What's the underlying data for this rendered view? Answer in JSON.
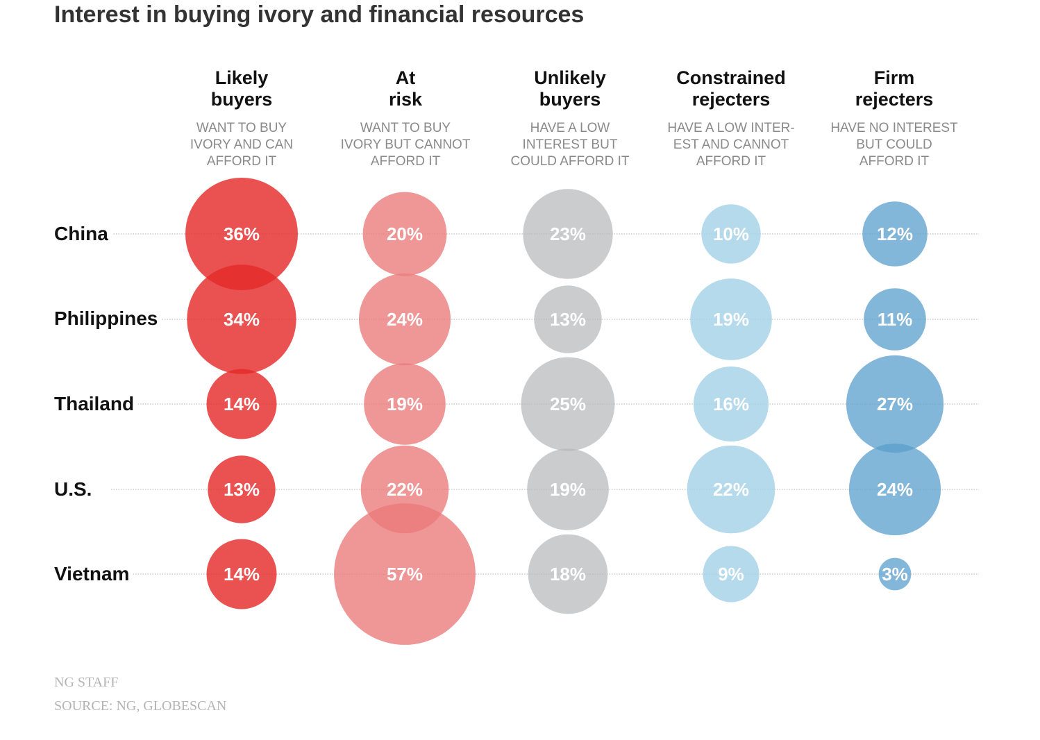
{
  "title": "Interest in buying ivory and financial resources",
  "colors": {
    "likely_buyers": "#e52b2b",
    "at_risk": "#ea7a7a",
    "unlikely_buyers": "#b5b8ba",
    "constrained_rejecters": "#a5d2e6",
    "firm_rejecters": "#5a9fcc",
    "label_text": "#ffffff",
    "gridline": "#b0b0b0"
  },
  "chart_data": {
    "type": "bubble-matrix",
    "title": "Interest in buying ivory and financial resources",
    "unit": "%",
    "categories": [
      "Likely buyers",
      "At risk",
      "Unlikely buyers",
      "Constrained rejecters",
      "Firm rejecters"
    ],
    "columns": [
      {
        "name_line1": "Likely",
        "name_line2": "buyers",
        "desc_line1": "WANT TO BUY",
        "desc_line2": "IVORY AND CAN",
        "desc_line3": "AFFORD IT"
      },
      {
        "name_line1": "At",
        "name_line2": "risk",
        "desc_line1": "WANT TO BUY",
        "desc_line2": "IVORY BUT CANNOT",
        "desc_line3": "AFFORD IT"
      },
      {
        "name_line1": "Unlikely",
        "name_line2": "buyers",
        "desc_line1": "HAVE A LOW",
        "desc_line2": "INTEREST BUT",
        "desc_line3": "COULD AFFORD IT"
      },
      {
        "name_line1": "Constrained",
        "name_line2": "rejecters",
        "desc_line1": "HAVE A LOW INTER-",
        "desc_line2": "EST AND CANNOT",
        "desc_line3": "AFFORD IT"
      },
      {
        "name_line1": "Firm",
        "name_line2": "rejecters",
        "desc_line1": "HAVE NO INTEREST",
        "desc_line2": "BUT COULD",
        "desc_line3": "AFFORD IT"
      }
    ],
    "rows": [
      "China",
      "Philippines",
      "Thailand",
      "U.S.",
      "Vietnam"
    ],
    "series": [
      {
        "name": "China",
        "values": [
          36,
          20,
          23,
          10,
          12
        ]
      },
      {
        "name": "Philippines",
        "values": [
          34,
          24,
          13,
          19,
          11
        ]
      },
      {
        "name": "Thailand",
        "values": [
          14,
          19,
          25,
          16,
          27
        ]
      },
      {
        "name": "U.S.",
        "values": [
          13,
          22,
          19,
          22,
          24
        ]
      },
      {
        "name": "Vietnam",
        "values": [
          14,
          57,
          18,
          9,
          3
        ]
      }
    ],
    "gridlines": true
  },
  "credits": {
    "staff": "NG STAFF",
    "source": "SOURCE: NG, GLOBESCAN"
  }
}
